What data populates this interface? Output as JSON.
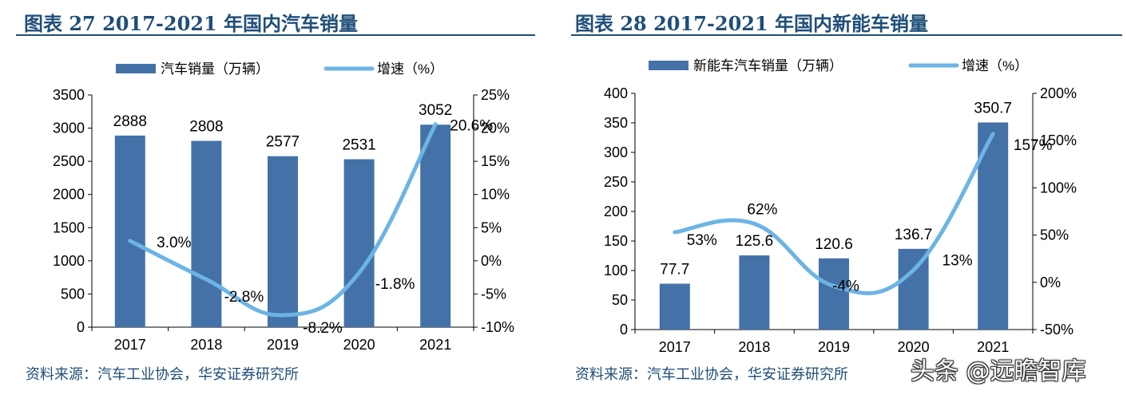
{
  "left": {
    "title": "图表 27 2017-2021 年国内汽车销量",
    "source": "资料来源：汽车工业协会，华安证券研究所",
    "legend": {
      "bar": "汽车销量（万辆）",
      "line": "增速（%）"
    },
    "chart_data": {
      "type": "bar",
      "categories": [
        "2017",
        "2018",
        "2019",
        "2020",
        "2021"
      ],
      "series": [
        {
          "name": "汽车销量（万辆）",
          "axis": "left",
          "values": [
            2888,
            2808,
            2577,
            2531,
            3052
          ],
          "labels": [
            "2888",
            "2808",
            "2577",
            "2531",
            "3052"
          ]
        },
        {
          "name": "增速（%）",
          "axis": "right",
          "type": "line",
          "values": [
            3.0,
            -2.8,
            -8.2,
            -1.8,
            20.6
          ],
          "labels": [
            "3.0%",
            "-2.8%",
            "-8.2%",
            "-1.8%",
            "20.6%"
          ]
        }
      ],
      "ylim": [
        0,
        3500
      ],
      "y_ticks": [
        "0",
        "500",
        "1000",
        "1500",
        "2000",
        "2500",
        "3000",
        "3500"
      ],
      "y2lim": [
        -10,
        25
      ],
      "y2_ticks": [
        "-10%",
        "-5%",
        "0%",
        "5%",
        "10%",
        "15%",
        "20%",
        "25%"
      ],
      "legend_position": "top",
      "grid": false
    }
  },
  "right": {
    "title": "图表 28 2017-2021 年国内新能车销量",
    "source": "资料来源：汽车工业协会，华安证券研究所",
    "legend": {
      "bar": "新能车汽车销量（万辆）",
      "line": "增速（%）"
    },
    "chart_data": {
      "type": "bar",
      "categories": [
        "2017",
        "2018",
        "2019",
        "2020",
        "2021"
      ],
      "series": [
        {
          "name": "新能车汽车销量（万辆）",
          "axis": "left",
          "values": [
            77.7,
            125.6,
            120.6,
            136.7,
            350.7
          ],
          "labels": [
            "77.7",
            "125.6",
            "120.6",
            "136.7",
            "350.7"
          ]
        },
        {
          "name": "增速（%）",
          "axis": "right",
          "type": "line",
          "values": [
            53,
            62,
            -4,
            13,
            157
          ],
          "labels": [
            "53%",
            "62%",
            "-4%",
            "13%",
            "157%"
          ]
        }
      ],
      "ylim": [
        0,
        400
      ],
      "y_ticks": [
        "0",
        "50",
        "100",
        "150",
        "200",
        "250",
        "300",
        "350",
        "400"
      ],
      "y2lim": [
        -50,
        200
      ],
      "y2_ticks": [
        "-50%",
        "0%",
        "50%",
        "100%",
        "150%",
        "200%"
      ],
      "legend_position": "top",
      "grid": false
    }
  },
  "watermark": "头条 @远瞻智库",
  "colors": {
    "bar": "#4472a8",
    "line": "#6cb4e4",
    "title": "#1f4e79",
    "axis": "#000000"
  }
}
